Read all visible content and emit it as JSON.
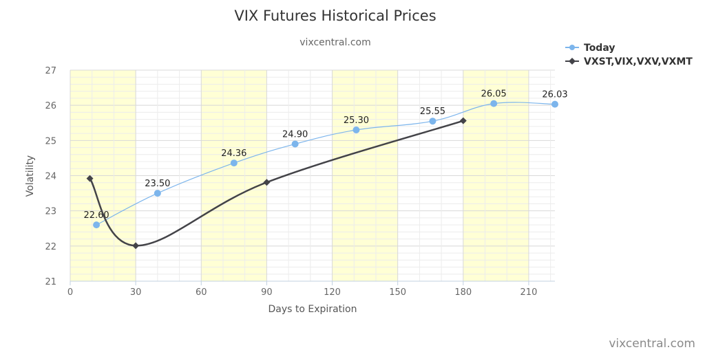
{
  "chart_data": {
    "type": "line",
    "title": "VIX Futures Historical Prices",
    "subtitle": "vixcentral.com",
    "xlabel": "Days to Expiration",
    "ylabel": "Volatility",
    "xlim": [
      0,
      222
    ],
    "ylim": [
      21,
      27
    ],
    "x_ticks": [
      0,
      30,
      60,
      90,
      120,
      150,
      180,
      210
    ],
    "y_ticks": [
      21,
      22,
      23,
      24,
      25,
      26,
      27
    ],
    "grid": true,
    "highlight_bands": [
      [
        0,
        30
      ],
      [
        60,
        90
      ],
      [
        120,
        150
      ],
      [
        180,
        210
      ]
    ],
    "legend_position": "top-right",
    "series": [
      {
        "name": "Today",
        "color": "#7cb5ec",
        "marker": "circle",
        "x": [
          12,
          40,
          75,
          103,
          131,
          166,
          194,
          222
        ],
        "y": [
          22.6,
          23.5,
          24.36,
          24.9,
          25.3,
          25.55,
          26.05,
          26.03
        ],
        "data_labels": [
          "22.60",
          "23.50",
          "24.36",
          "24.90",
          "25.30",
          "25.55",
          "26.05",
          "26.03"
        ]
      },
      {
        "name": "VXST,VIX,VXV,VXMT",
        "color": "#434348",
        "marker": "diamond",
        "x": [
          9,
          30,
          90,
          180
        ],
        "y": [
          23.92,
          22.01,
          23.81,
          25.56
        ]
      }
    ],
    "credit": "vixcentral.com"
  }
}
